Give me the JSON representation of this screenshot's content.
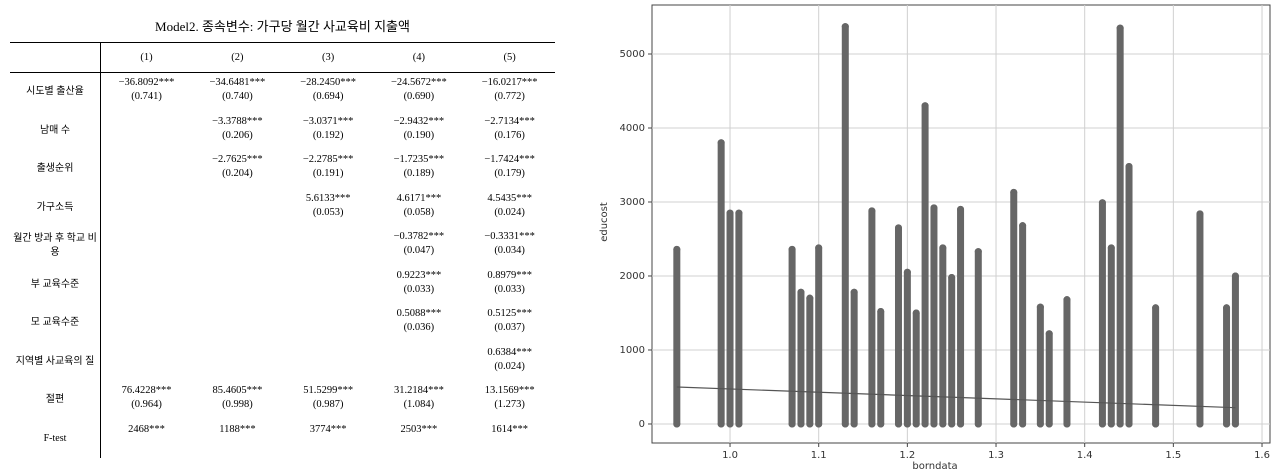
{
  "table": {
    "title": "Model2. 종속변수: 가구당 월간 사교육비 지출액",
    "columns": [
      "(1)",
      "(2)",
      "(3)",
      "(4)",
      "(5)"
    ],
    "rows": [
      {
        "label": "시도별 출산율",
        "cells": [
          {
            "coef": "−36.8092***",
            "se": "(0.741)"
          },
          {
            "coef": "−34.6481***",
            "se": "(0.740)"
          },
          {
            "coef": "−28.2450***",
            "se": "(0.694)"
          },
          {
            "coef": "−24.5672***",
            "se": "(0.690)"
          },
          {
            "coef": "−16.0217***",
            "se": "(0.772)"
          }
        ]
      },
      {
        "label": "남매 수",
        "cells": [
          null,
          {
            "coef": "−3.3788***",
            "se": "(0.206)"
          },
          {
            "coef": "−3.0371***",
            "se": "(0.192)"
          },
          {
            "coef": "−2.9432***",
            "se": "(0.190)"
          },
          {
            "coef": "−2.7134***",
            "se": "(0.176)"
          }
        ]
      },
      {
        "label": "출생순위",
        "cells": [
          null,
          {
            "coef": "−2.7625***",
            "se": "(0.204)"
          },
          {
            "coef": "−2.2785***",
            "se": "(0.191)"
          },
          {
            "coef": "−1.7235***",
            "se": "(0.189)"
          },
          {
            "coef": "−1.7424***",
            "se": "(0.179)"
          }
        ]
      },
      {
        "label": "가구소득",
        "cells": [
          null,
          null,
          {
            "coef": "5.6133***",
            "se": "(0.053)"
          },
          {
            "coef": "4.6171***",
            "se": "(0.058)"
          },
          {
            "coef": "4.5435***",
            "se": "(0.024)"
          }
        ]
      },
      {
        "label": "월간 방과 후 학교 비용",
        "cells": [
          null,
          null,
          null,
          {
            "coef": "−0.3782***",
            "se": "(0.047)"
          },
          {
            "coef": "−0.3331***",
            "se": "(0.034)"
          }
        ]
      },
      {
        "label": "부 교육수준",
        "cells": [
          null,
          null,
          null,
          {
            "coef": "0.9223***",
            "se": "(0.033)"
          },
          {
            "coef": "0.8979***",
            "se": "(0.033)"
          }
        ]
      },
      {
        "label": "모 교육수준",
        "cells": [
          null,
          null,
          null,
          {
            "coef": "0.5088***",
            "se": "(0.036)"
          },
          {
            "coef": "0.5125***",
            "se": "(0.037)"
          }
        ]
      },
      {
        "label": "지역별 사교육의 질",
        "cells": [
          null,
          null,
          null,
          null,
          {
            "coef": "0.6384***",
            "se": "(0.024)"
          }
        ]
      },
      {
        "label": "절편",
        "cells": [
          {
            "coef": "76.4228***",
            "se": "(0.964)"
          },
          {
            "coef": "85.4605***",
            "se": "(0.998)"
          },
          {
            "coef": "51.5299***",
            "se": "(0.987)"
          },
          {
            "coef": "31.2184***",
            "se": "(1.084)"
          },
          {
            "coef": "13.1569***",
            "se": "(1.273)"
          }
        ]
      },
      {
        "label": "F-test",
        "cells": [
          {
            "coef": "2468***"
          },
          {
            "coef": "1188***"
          },
          {
            "coef": "3774***"
          },
          {
            "coef": "2503***"
          },
          {
            "coef": "1614***"
          }
        ]
      }
    ]
  },
  "chart_data": {
    "type": "scatter",
    "x_label": "borndata",
    "y_label": "educost",
    "color": "#666666",
    "grid": true,
    "x": [
      0.94,
      0.94,
      0.99,
      0.99,
      1.0,
      1.0,
      1.01,
      1.01,
      1.07,
      1.07,
      1.08,
      1.08,
      1.09,
      1.09,
      1.1,
      1.1,
      1.13,
      1.13,
      1.14,
      1.14,
      1.16,
      1.16,
      1.17,
      1.17,
      1.19,
      1.19,
      1.2,
      1.2,
      1.21,
      1.21,
      1.22,
      1.22,
      1.23,
      1.23,
      1.24,
      1.24,
      1.25,
      1.25,
      1.26,
      1.26,
      1.28,
      1.28,
      1.32,
      1.32,
      1.33,
      1.33,
      1.35,
      1.35,
      1.36,
      1.36,
      1.38,
      1.38,
      1.42,
      1.42,
      1.43,
      1.43,
      1.44,
      1.44,
      1.45,
      1.45,
      1.48,
      1.48,
      1.53,
      1.53,
      1.56,
      1.56,
      1.57,
      1.57
    ],
    "y": [
      0,
      2360,
      0,
      3800,
      0,
      2850,
      0,
      2850,
      0,
      2360,
      0,
      1780,
      0,
      1700,
      0,
      2380,
      0,
      5370,
      0,
      1780,
      0,
      2880,
      0,
      1520,
      0,
      2650,
      0,
      2050,
      0,
      1500,
      0,
      4300,
      0,
      2920,
      0,
      2380,
      0,
      1980,
      0,
      2900,
      0,
      2330,
      0,
      3130,
      0,
      2680,
      0,
      1580,
      0,
      1220,
      0,
      1680,
      0,
      2990,
      0,
      2380,
      0,
      5350,
      0,
      3480,
      0,
      1570,
      0,
      2840,
      0,
      1570,
      0,
      2000
    ],
    "trend": {
      "x": [
        0.94,
        1.57
      ],
      "y": [
        500,
        220
      ]
    },
    "xlim": [
      0.912,
      1.609
    ],
    "ylim": [
      -257,
      5662
    ],
    "xticks": [
      {
        "value": 1.0,
        "label": "1.0"
      },
      {
        "value": 1.1,
        "label": "1.1"
      },
      {
        "value": 1.2,
        "label": "1.2"
      },
      {
        "value": 1.3,
        "label": "1.3"
      },
      {
        "value": 1.4,
        "label": "1.4"
      },
      {
        "value": 1.5,
        "label": "1.5"
      },
      {
        "value": 1.6,
        "label": "1.6"
      }
    ],
    "yticks": [
      0,
      1000,
      2000,
      3000,
      4000,
      5000
    ]
  }
}
